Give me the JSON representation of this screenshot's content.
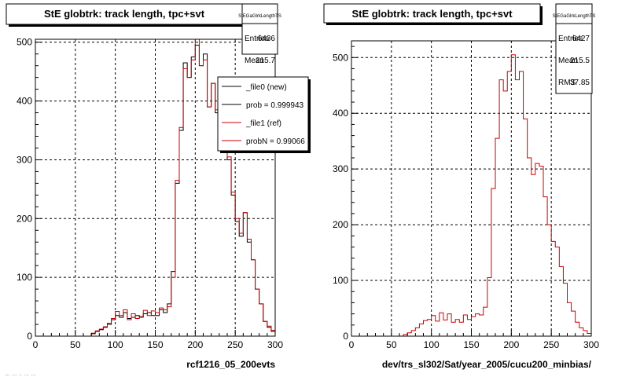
{
  "colors": {
    "background": "#ffffff",
    "frame": "#000000",
    "grid": "#000000",
    "ref_line": "#cc0000",
    "new_line": "#000000"
  },
  "footer_text": "... ... .. ... ...",
  "chart_data": [
    {
      "type": "histogram",
      "title": "StE globtrk: track length, tpc+svt",
      "xlabel": "rcf1216_05_200evts",
      "xlim": [
        0,
        300
      ],
      "ylim": [
        0,
        505
      ],
      "xticks": [
        0,
        50,
        100,
        150,
        200,
        250,
        300
      ],
      "yticks": [
        0,
        100,
        200,
        300,
        400,
        500
      ],
      "grid": true,
      "bin_edges_start": 0,
      "bin_width": 5,
      "stats_box": {
        "name": "StEGaGlrkLengthTS",
        "rows": [
          {
            "label": "Entries",
            "value": "6436"
          },
          {
            "label": "Mean",
            "value": "215.7"
          }
        ]
      },
      "legend": {
        "position": "top-right",
        "entries": [
          {
            "label": "_file0 (new)",
            "color": "#000000"
          },
          {
            "label": "prob = 0.999943",
            "color": "#000000"
          },
          {
            "label": "_file1 (ref)",
            "color": "#cc0000"
          },
          {
            "label": "probN = 0.99066",
            "color": "#cc0000"
          }
        ]
      },
      "series": [
        {
          "name": "_file0 (new)",
          "color": "#000000",
          "values": [
            0,
            0,
            0,
            0,
            0,
            0,
            0,
            0,
            0,
            0,
            0,
            0,
            0,
            0,
            5,
            8,
            11,
            15,
            20,
            28,
            35,
            32,
            40,
            30,
            32,
            35,
            33,
            38,
            40,
            35,
            35,
            45,
            40,
            55,
            110,
            260,
            350,
            465,
            440,
            475,
            495,
            460,
            480,
            390,
            430,
            380,
            320,
            330,
            300,
            240,
            195,
            170,
            210,
            160,
            130,
            80,
            55,
            25,
            15,
            8
          ],
          "visible_top": [
            null,
            null,
            null,
            null,
            null,
            null,
            null,
            null,
            null,
            null,
            null,
            null,
            null,
            null,
            null,
            null,
            null,
            null,
            null,
            null,
            null,
            null,
            null,
            null,
            null,
            null,
            null,
            null,
            null,
            null,
            null,
            null,
            null,
            null,
            null,
            null,
            null,
            null,
            null,
            null,
            null,
            null,
            null,
            null,
            null,
            null,
            null,
            null,
            null,
            null,
            null,
            null,
            null,
            null,
            null,
            null,
            null,
            null,
            null,
            null
          ]
        },
        {
          "name": "_file1 (ref)",
          "color": "#cc0000",
          "values": [
            0,
            0,
            0,
            0,
            0,
            0,
            0,
            0,
            0,
            0,
            0,
            0,
            0,
            0,
            4,
            9,
            12,
            16,
            22,
            30,
            42,
            35,
            45,
            28,
            38,
            30,
            32,
            44,
            35,
            43,
            40,
            48,
            45,
            50,
            100,
            265,
            355,
            455,
            440,
            470,
            505,
            460,
            470,
            390,
            430,
            385,
            325,
            330,
            305,
            245,
            200,
            175,
            210,
            165,
            130,
            80,
            55,
            25,
            17,
            10
          ]
        }
      ]
    },
    {
      "type": "histogram",
      "title": "StE globtrk: track length, tpc+svt",
      "xlabel": "dev/trs_sl302/Sat/year_2005/cucu200_minbias/",
      "xlim": [
        0,
        300
      ],
      "ylim": [
        0,
        530
      ],
      "xticks": [
        0,
        50,
        100,
        150,
        200,
        250,
        300
      ],
      "yticks": [
        0,
        100,
        200,
        300,
        400,
        500
      ],
      "grid": true,
      "bin_edges_start": 0,
      "bin_width": 5,
      "stats_box": {
        "name": "StEGaGlrkLengthTS",
        "rows": [
          {
            "label": "Entries",
            "value": "6427"
          },
          {
            "label": "Mean",
            "value": "215.5"
          },
          {
            "label": "RMS",
            "value": "37.85"
          }
        ]
      },
      "series": [
        {
          "name": "",
          "color": "#cc0000",
          "values": [
            0,
            0,
            0,
            0,
            0,
            0,
            0,
            0,
            0,
            0,
            0,
            0,
            0,
            3,
            6,
            10,
            15,
            22,
            28,
            30,
            37,
            27,
            42,
            29,
            40,
            25,
            30,
            25,
            38,
            30,
            35,
            40,
            38,
            52,
            105,
            265,
            355,
            460,
            440,
            475,
            505,
            460,
            475,
            390,
            320,
            290,
            310,
            305,
            250,
            200,
            170,
            160,
            125,
            95,
            60,
            45,
            25,
            15,
            10,
            5
          ]
        }
      ]
    }
  ]
}
